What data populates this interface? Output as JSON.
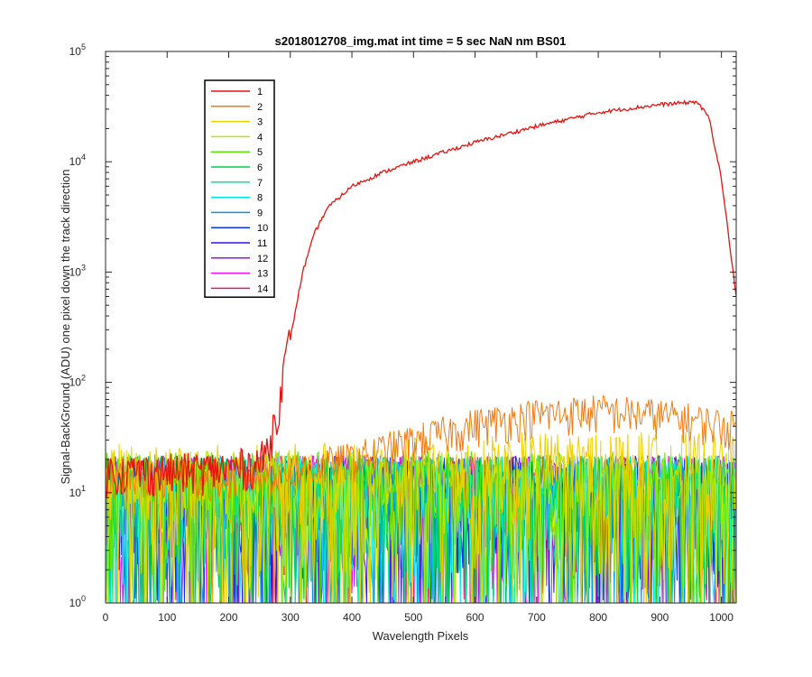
{
  "chart_data": {
    "type": "line",
    "title": "s2018012708_img.mat int time = 5 sec  NaN nm BS01",
    "xlabel": "Wavelength Pixels",
    "ylabel": "Signal-BackGround (ADU) one pixel down the track direction",
    "xlim": [
      0,
      1024
    ],
    "ylim": [
      1,
      100000
    ],
    "yscale": "log",
    "x_ticks": [
      0,
      100,
      200,
      300,
      400,
      500,
      600,
      700,
      800,
      900,
      1000
    ],
    "y_ticks": [
      {
        "value": 1,
        "base": "10",
        "exp": "0"
      },
      {
        "value": 10,
        "base": "10",
        "exp": "1"
      },
      {
        "value": 100,
        "base": "10",
        "exp": "2"
      },
      {
        "value": 1000,
        "base": "10",
        "exp": "3"
      },
      {
        "value": 10000,
        "base": "10",
        "exp": "4"
      },
      {
        "value": 100000,
        "base": "10",
        "exp": "5"
      }
    ],
    "grid": false,
    "legend_position": "top-left",
    "series": [
      {
        "name": "1",
        "color": "#e8120f",
        "profile": [
          [
            0,
            15
          ],
          [
            100,
            15
          ],
          [
            200,
            16
          ],
          [
            250,
            18
          ],
          [
            265,
            25
          ],
          [
            280,
            60
          ],
          [
            300,
            250
          ],
          [
            320,
            1000
          ],
          [
            340,
            2300
          ],
          [
            360,
            3800
          ],
          [
            400,
            6000
          ],
          [
            450,
            8000
          ],
          [
            500,
            10000
          ],
          [
            600,
            15000
          ],
          [
            700,
            21000
          ],
          [
            800,
            28000
          ],
          [
            900,
            33000
          ],
          [
            960,
            35000
          ],
          [
            980,
            25000
          ],
          [
            1000,
            7000
          ],
          [
            1024,
            600
          ]
        ]
      },
      {
        "name": "2",
        "color": "#f57a0f",
        "profile": [
          [
            0,
            15
          ],
          [
            200,
            15
          ],
          [
            300,
            17
          ],
          [
            400,
            22
          ],
          [
            500,
            32
          ],
          [
            600,
            45
          ],
          [
            700,
            55
          ],
          [
            800,
            60
          ],
          [
            900,
            55
          ],
          [
            1000,
            45
          ],
          [
            1024,
            42
          ]
        ]
      },
      {
        "name": "3",
        "color": "#f0d000",
        "profile": [
          [
            0,
            14
          ],
          [
            300,
            14
          ],
          [
            500,
            16
          ],
          [
            700,
            18
          ],
          [
            900,
            18
          ],
          [
            1024,
            18
          ]
        ]
      },
      {
        "name": "4",
        "color": "#b9e600",
        "profile": [
          [
            0,
            12
          ],
          [
            1024,
            12
          ]
        ]
      },
      {
        "name": "5",
        "color": "#5ce600",
        "profile": [
          [
            0,
            12
          ],
          [
            1024,
            12
          ]
        ]
      },
      {
        "name": "6",
        "color": "#00d24f",
        "profile": [
          [
            0,
            11
          ],
          [
            1024,
            11
          ]
        ]
      },
      {
        "name": "7",
        "color": "#00e6a0",
        "profile": [
          [
            0,
            11
          ],
          [
            1024,
            11
          ]
        ]
      },
      {
        "name": "8",
        "color": "#00e6e6",
        "profile": [
          [
            0,
            11
          ],
          [
            1024,
            11
          ]
        ]
      },
      {
        "name": "9",
        "color": "#0096e6",
        "profile": [
          [
            0,
            11
          ],
          [
            1024,
            11
          ]
        ]
      },
      {
        "name": "10",
        "color": "#0035ea",
        "profile": [
          [
            0,
            11
          ],
          [
            1024,
            11
          ]
        ]
      },
      {
        "name": "11",
        "color": "#3c10e0",
        "profile": [
          [
            0,
            11
          ],
          [
            1024,
            11
          ]
        ]
      },
      {
        "name": "12",
        "color": "#9a10e8",
        "profile": [
          [
            0,
            11
          ],
          [
            1024,
            11
          ]
        ]
      },
      {
        "name": "13",
        "color": "#ee10ee",
        "profile": [
          [
            0,
            11
          ],
          [
            1024,
            11
          ]
        ]
      },
      {
        "name": "14",
        "color": "#f0107a",
        "profile": [
          [
            0,
            11
          ],
          [
            1024,
            11
          ]
        ]
      }
    ]
  }
}
